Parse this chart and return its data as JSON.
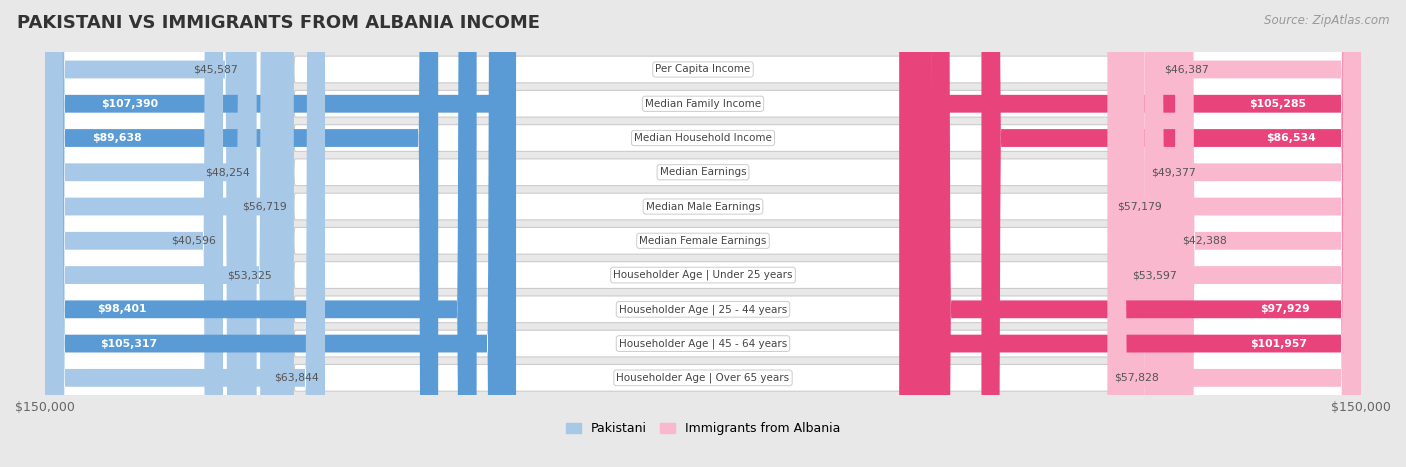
{
  "title": "PAKISTANI VS IMMIGRANTS FROM ALBANIA INCOME",
  "source": "Source: ZipAtlas.com",
  "categories": [
    "Per Capita Income",
    "Median Family Income",
    "Median Household Income",
    "Median Earnings",
    "Median Male Earnings",
    "Median Female Earnings",
    "Householder Age | Under 25 years",
    "Householder Age | 25 - 44 years",
    "Householder Age | 45 - 64 years",
    "Householder Age | Over 65 years"
  ],
  "pakistani_values": [
    45587,
    107390,
    89638,
    48254,
    56719,
    40596,
    53325,
    98401,
    105317,
    63844
  ],
  "albania_values": [
    46387,
    105285,
    86534,
    49377,
    57179,
    42388,
    53597,
    97929,
    101957,
    57828
  ],
  "pakistani_labels": [
    "$45,587",
    "$107,390",
    "$89,638",
    "$48,254",
    "$56,719",
    "$40,596",
    "$53,325",
    "$98,401",
    "$105,317",
    "$63,844"
  ],
  "albania_labels": [
    "$46,387",
    "$105,285",
    "$86,534",
    "$49,377",
    "$57,179",
    "$42,388",
    "$53,597",
    "$97,929",
    "$101,957",
    "$57,828"
  ],
  "pakistani_color_light": "#a8c8e8",
  "pakistani_color_dark": "#5b9bd5",
  "albania_color_light": "#f9b8cd",
  "albania_color_dark": "#e8437a",
  "threshold_dark": 80000,
  "xlim": 150000,
  "xlabel_left": "$150,000",
  "xlabel_right": "$150,000",
  "legend_pakistani": "Pakistani",
  "legend_albania": "Immigrants from Albania",
  "background_color": "#e8e8e8",
  "row_bg_color": "#f0f0f0",
  "title_fontsize": 13,
  "source_fontsize": 8.5,
  "figsize": [
    14.06,
    4.67
  ],
  "dpi": 100
}
